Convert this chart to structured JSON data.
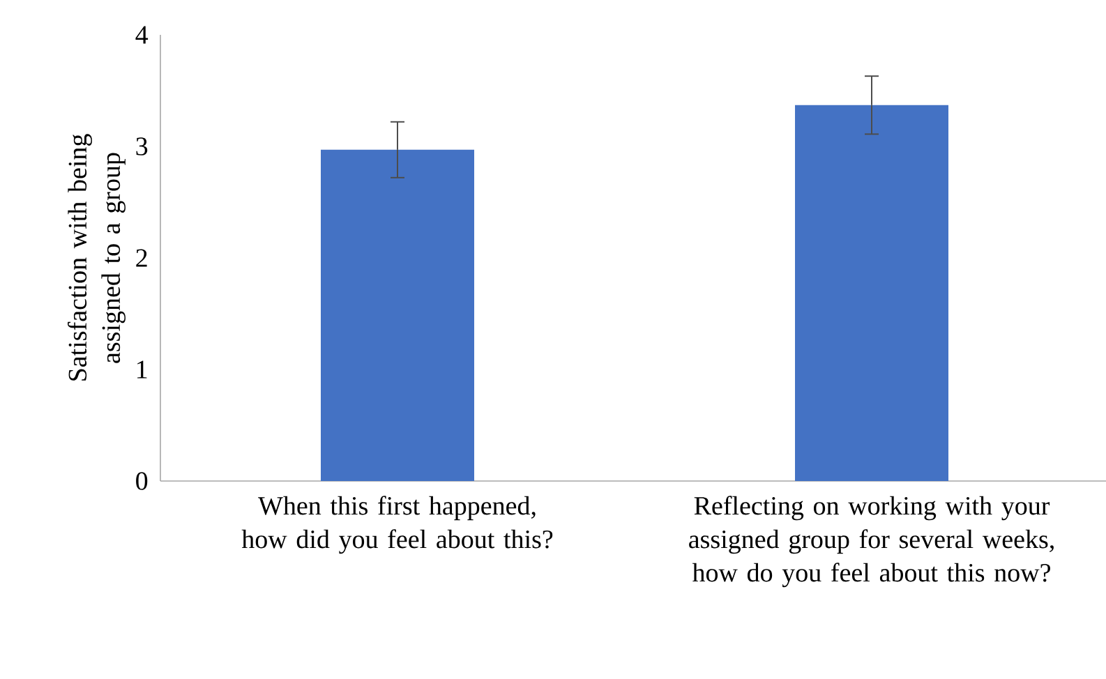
{
  "chart_data": {
    "type": "bar",
    "ylabel": "Satisfaction with being assigned to a group",
    "categories": [
      "When this first happened, how did you feel about this?",
      "Reflecting on working with your assigned group for several weeks, how do you feel about this now?"
    ],
    "values": [
      2.97,
      3.37
    ],
    "errors": [
      0.25,
      0.26
    ],
    "color": "#4472c4",
    "ylim": [
      0,
      4
    ],
    "yticks": [
      0,
      1,
      2,
      3,
      4
    ],
    "grid": false
  }
}
